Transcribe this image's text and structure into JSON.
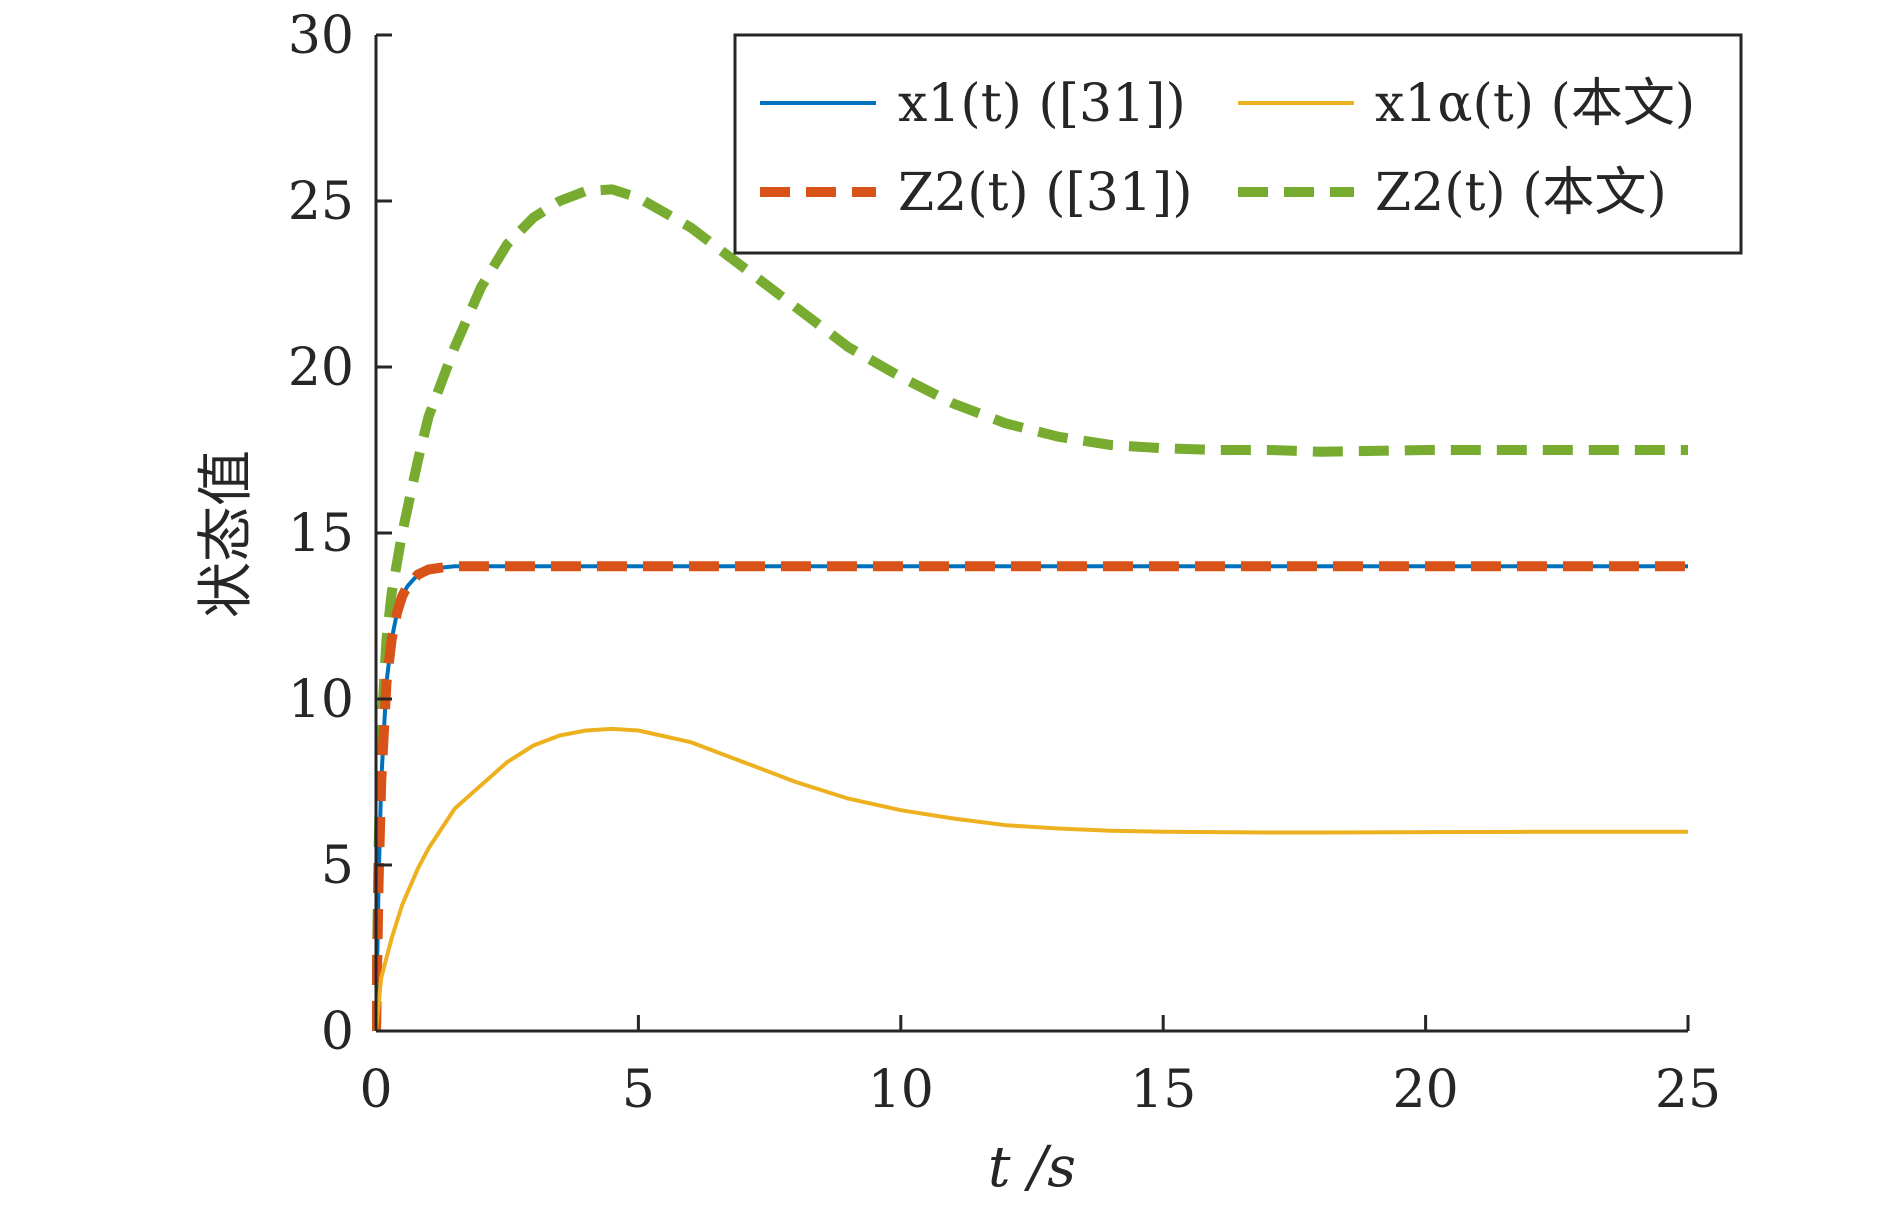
{
  "chart_data": {
    "type": "line",
    "xlabel": "t /s",
    "ylabel": "状态值",
    "xlim": [
      0,
      25
    ],
    "ylim": [
      0,
      30
    ],
    "xticks": [
      0,
      5,
      10,
      15,
      20,
      25
    ],
    "yticks": [
      0,
      5,
      10,
      15,
      20,
      25,
      30
    ],
    "x_tick_labels": [
      "0",
      "5",
      "10",
      "15",
      "20",
      "25"
    ],
    "y_tick_labels": [
      "0",
      "5",
      "10",
      "15",
      "20",
      "25",
      "30"
    ],
    "grid": false,
    "legend_position": "top-right",
    "series": [
      {
        "name": "x1(t) ([31])",
        "color": "#0072BD",
        "style": "solid",
        "x": [
          0,
          0.05,
          0.1,
          0.2,
          0.3,
          0.4,
          0.5,
          0.6,
          0.8,
          1.0,
          1.2,
          1.5,
          2,
          3,
          5,
          10,
          15,
          20,
          25
        ],
        "y": [
          0,
          4.5,
          7.5,
          10.5,
          11.8,
          12.6,
          13.1,
          13.4,
          13.75,
          13.9,
          13.95,
          14.0,
          14.0,
          14.0,
          14.0,
          14.0,
          14.0,
          14.0,
          14.0
        ]
      },
      {
        "name": "x1α(t) (本文)",
        "color": "#EDB120",
        "style": "solid",
        "x": [
          0,
          0.1,
          0.3,
          0.5,
          0.8,
          1.0,
          1.5,
          2.0,
          2.5,
          3.0,
          3.5,
          4.0,
          4.5,
          5.0,
          6.0,
          7.0,
          8.0,
          9.0,
          10.0,
          11.0,
          12.0,
          13.0,
          14.0,
          15.0,
          16.0,
          17.0,
          18.0,
          20.0,
          22.0,
          25.0
        ],
        "y": [
          0,
          1.6,
          2.8,
          3.8,
          4.9,
          5.5,
          6.7,
          7.4,
          8.1,
          8.6,
          8.9,
          9.05,
          9.1,
          9.05,
          8.7,
          8.1,
          7.5,
          7.0,
          6.65,
          6.4,
          6.2,
          6.1,
          6.03,
          6.0,
          5.99,
          5.98,
          5.98,
          5.99,
          6.0,
          6.0
        ]
      },
      {
        "name": "Z2(t) ([31])",
        "color": "#D95319",
        "style": "dashed",
        "x": [
          0,
          0.05,
          0.1,
          0.2,
          0.3,
          0.4,
          0.5,
          0.6,
          0.8,
          1.0,
          1.2,
          1.5,
          2,
          3,
          5,
          10,
          15,
          20,
          25
        ],
        "y": [
          0,
          4.5,
          7.5,
          10.5,
          11.8,
          12.6,
          13.1,
          13.4,
          13.75,
          13.9,
          13.95,
          14.0,
          14.0,
          14.0,
          14.0,
          14.0,
          14.0,
          14.0,
          14.0
        ]
      },
      {
        "name": "Z2(t) (本文)",
        "color": "#77AC30",
        "style": "dashed",
        "x": [
          0,
          0.05,
          0.1,
          0.2,
          0.3,
          0.5,
          0.8,
          1.0,
          1.5,
          2.0,
          2.5,
          3.0,
          3.5,
          4.0,
          4.5,
          5.0,
          6.0,
          7.0,
          8.0,
          9.0,
          10.0,
          11.0,
          12.0,
          13.0,
          14.0,
          15.0,
          16.0,
          17.0,
          18.0,
          20.0,
          22.0,
          25.0
        ],
        "y": [
          0,
          5.5,
          9.0,
          11.8,
          13.2,
          15.0,
          17.2,
          18.5,
          20.6,
          22.4,
          23.7,
          24.5,
          25.0,
          25.3,
          25.35,
          25.1,
          24.2,
          23.0,
          21.8,
          20.6,
          19.7,
          18.9,
          18.3,
          17.9,
          17.65,
          17.55,
          17.5,
          17.5,
          17.45,
          17.5,
          17.5,
          17.5
        ]
      }
    ]
  }
}
